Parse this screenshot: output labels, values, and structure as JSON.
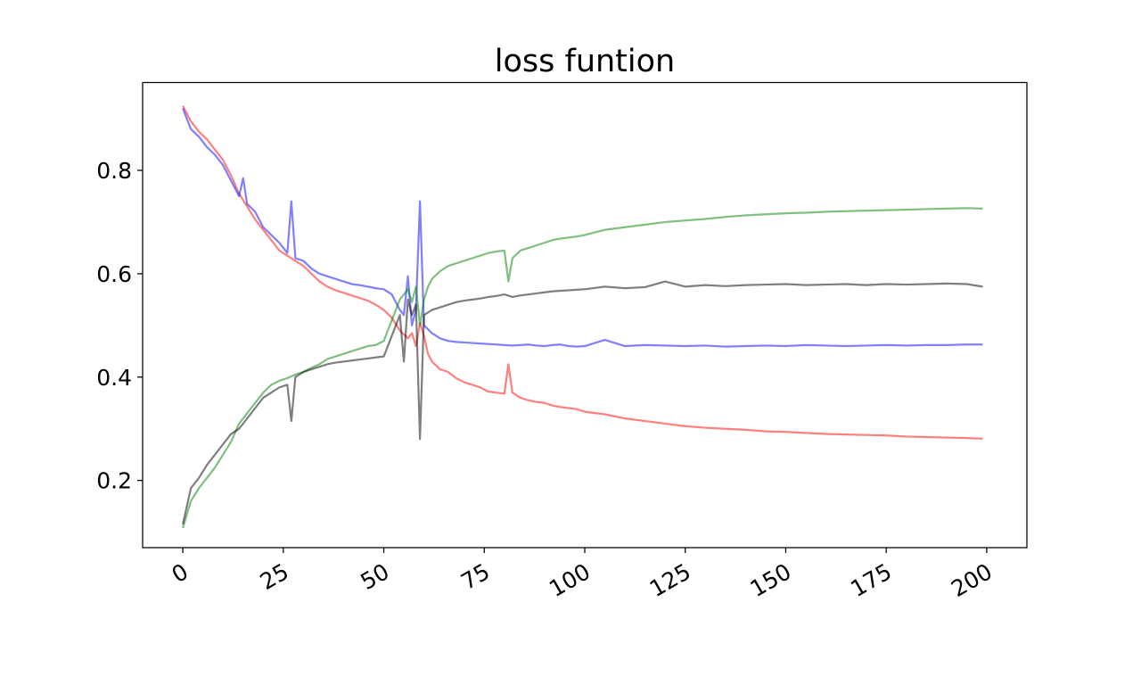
{
  "chart_data": {
    "type": "line",
    "title": "loss funtion",
    "xlabel": "",
    "ylabel": "",
    "xlim": [
      -10,
      210
    ],
    "ylim": [
      0.07,
      0.97
    ],
    "xticks": [
      0,
      25,
      50,
      75,
      100,
      125,
      150,
      175,
      200
    ],
    "yticks": [
      0.2,
      0.4,
      0.6,
      0.8
    ],
    "xtick_rotation": 30,
    "grid": false,
    "legend": "none",
    "series": [
      {
        "color": "#ff0000",
        "opacity": 0.5,
        "x": [
          0,
          2,
          4,
          6,
          8,
          10,
          12,
          14,
          16,
          18,
          20,
          22,
          24,
          26,
          28,
          30,
          32,
          34,
          36,
          38,
          40,
          42,
          44,
          46,
          48,
          50,
          52,
          54,
          56,
          57,
          58,
          59,
          60,
          61,
          62,
          64,
          66,
          68,
          70,
          72,
          74,
          76,
          78,
          80,
          81,
          82,
          84,
          86,
          88,
          90,
          92,
          94,
          96,
          98,
          100,
          105,
          110,
          115,
          120,
          125,
          130,
          135,
          140,
          145,
          150,
          155,
          160,
          165,
          170,
          175,
          180,
          185,
          190,
          195,
          199
        ],
        "y": [
          0.925,
          0.895,
          0.875,
          0.86,
          0.84,
          0.82,
          0.79,
          0.755,
          0.73,
          0.705,
          0.685,
          0.665,
          0.645,
          0.635,
          0.625,
          0.615,
          0.6,
          0.585,
          0.575,
          0.568,
          0.563,
          0.558,
          0.553,
          0.548,
          0.54,
          0.53,
          0.515,
          0.49,
          0.475,
          0.485,
          0.46,
          0.505,
          0.48,
          0.445,
          0.43,
          0.415,
          0.41,
          0.398,
          0.39,
          0.385,
          0.38,
          0.372,
          0.37,
          0.368,
          0.425,
          0.37,
          0.36,
          0.355,
          0.352,
          0.35,
          0.345,
          0.342,
          0.34,
          0.338,
          0.333,
          0.328,
          0.32,
          0.315,
          0.31,
          0.305,
          0.302,
          0.3,
          0.298,
          0.295,
          0.294,
          0.292,
          0.29,
          0.289,
          0.288,
          0.287,
          0.285,
          0.284,
          0.283,
          0.282,
          0.281
        ]
      },
      {
        "color": "#0000ff",
        "opacity": 0.5,
        "x": [
          0,
          2,
          4,
          6,
          8,
          10,
          12,
          14,
          15,
          16,
          18,
          20,
          22,
          24,
          26,
          27,
          28,
          30,
          32,
          34,
          36,
          38,
          40,
          42,
          44,
          46,
          48,
          50,
          52,
          54,
          55,
          56,
          57,
          58,
          59,
          60,
          62,
          64,
          66,
          68,
          70,
          72,
          74,
          76,
          78,
          80,
          82,
          84,
          86,
          88,
          90,
          92,
          94,
          96,
          98,
          100,
          105,
          110,
          115,
          120,
          125,
          130,
          135,
          140,
          145,
          150,
          155,
          160,
          165,
          170,
          175,
          180,
          185,
          190,
          195,
          199
        ],
        "y": [
          0.92,
          0.88,
          0.865,
          0.845,
          0.83,
          0.81,
          0.78,
          0.75,
          0.785,
          0.735,
          0.72,
          0.69,
          0.675,
          0.66,
          0.64,
          0.74,
          0.63,
          0.625,
          0.61,
          0.6,
          0.595,
          0.59,
          0.585,
          0.58,
          0.578,
          0.575,
          0.572,
          0.57,
          0.56,
          0.53,
          0.52,
          0.595,
          0.5,
          0.53,
          0.74,
          0.5,
          0.485,
          0.475,
          0.47,
          0.468,
          0.467,
          0.466,
          0.465,
          0.464,
          0.463,
          0.462,
          0.461,
          0.462,
          0.463,
          0.461,
          0.46,
          0.462,
          0.463,
          0.46,
          0.459,
          0.46,
          0.472,
          0.46,
          0.462,
          0.461,
          0.46,
          0.461,
          0.459,
          0.46,
          0.461,
          0.46,
          0.462,
          0.461,
          0.46,
          0.461,
          0.462,
          0.461,
          0.462,
          0.462,
          0.463,
          0.463
        ]
      },
      {
        "color": "#008000",
        "opacity": 0.5,
        "x": [
          0,
          2,
          4,
          6,
          8,
          10,
          12,
          14,
          16,
          18,
          20,
          22,
          24,
          26,
          28,
          30,
          32,
          34,
          36,
          38,
          40,
          42,
          44,
          46,
          48,
          50,
          52,
          54,
          56,
          57,
          58,
          59,
          60,
          61,
          62,
          64,
          66,
          68,
          70,
          72,
          74,
          76,
          78,
          80,
          81,
          82,
          84,
          86,
          88,
          90,
          92,
          94,
          96,
          98,
          100,
          105,
          110,
          115,
          120,
          125,
          130,
          135,
          140,
          145,
          150,
          155,
          160,
          165,
          170,
          175,
          180,
          185,
          190,
          195,
          199
        ],
        "y": [
          0.108,
          0.16,
          0.185,
          0.205,
          0.225,
          0.25,
          0.275,
          0.31,
          0.33,
          0.35,
          0.37,
          0.385,
          0.393,
          0.398,
          0.405,
          0.41,
          0.418,
          0.425,
          0.435,
          0.44,
          0.445,
          0.45,
          0.455,
          0.46,
          0.462,
          0.47,
          0.51,
          0.55,
          0.57,
          0.545,
          0.575,
          0.5,
          0.55,
          0.575,
          0.59,
          0.605,
          0.615,
          0.62,
          0.625,
          0.63,
          0.635,
          0.64,
          0.643,
          0.645,
          0.585,
          0.63,
          0.645,
          0.65,
          0.655,
          0.66,
          0.665,
          0.668,
          0.67,
          0.672,
          0.675,
          0.685,
          0.69,
          0.695,
          0.7,
          0.703,
          0.706,
          0.71,
          0.713,
          0.715,
          0.717,
          0.718,
          0.72,
          0.721,
          0.722,
          0.723,
          0.724,
          0.725,
          0.726,
          0.727,
          0.726
        ]
      },
      {
        "color": "#000000",
        "opacity": 0.5,
        "x": [
          0,
          2,
          4,
          6,
          8,
          10,
          12,
          14,
          16,
          18,
          20,
          22,
          24,
          26,
          27,
          28,
          30,
          32,
          34,
          36,
          38,
          40,
          42,
          44,
          46,
          48,
          50,
          52,
          54,
          55,
          56,
          57,
          58,
          59,
          60,
          62,
          64,
          66,
          68,
          70,
          72,
          74,
          76,
          78,
          80,
          82,
          84,
          86,
          88,
          90,
          92,
          94,
          96,
          98,
          100,
          105,
          110,
          115,
          120,
          125,
          130,
          135,
          140,
          145,
          150,
          155,
          160,
          165,
          170,
          175,
          180,
          185,
          190,
          195,
          199
        ],
        "y": [
          0.115,
          0.185,
          0.205,
          0.23,
          0.25,
          0.27,
          0.29,
          0.3,
          0.32,
          0.34,
          0.36,
          0.37,
          0.38,
          0.385,
          0.315,
          0.4,
          0.41,
          0.415,
          0.42,
          0.425,
          0.428,
          0.43,
          0.432,
          0.434,
          0.436,
          0.438,
          0.44,
          0.48,
          0.52,
          0.43,
          0.55,
          0.52,
          0.54,
          0.28,
          0.52,
          0.53,
          0.535,
          0.54,
          0.545,
          0.548,
          0.55,
          0.552,
          0.555,
          0.557,
          0.56,
          0.555,
          0.558,
          0.56,
          0.562,
          0.564,
          0.566,
          0.567,
          0.568,
          0.569,
          0.57,
          0.575,
          0.572,
          0.574,
          0.585,
          0.575,
          0.578,
          0.576,
          0.578,
          0.579,
          0.58,
          0.578,
          0.579,
          0.58,
          0.578,
          0.58,
          0.579,
          0.58,
          0.581,
          0.58,
          0.575
        ]
      }
    ]
  }
}
